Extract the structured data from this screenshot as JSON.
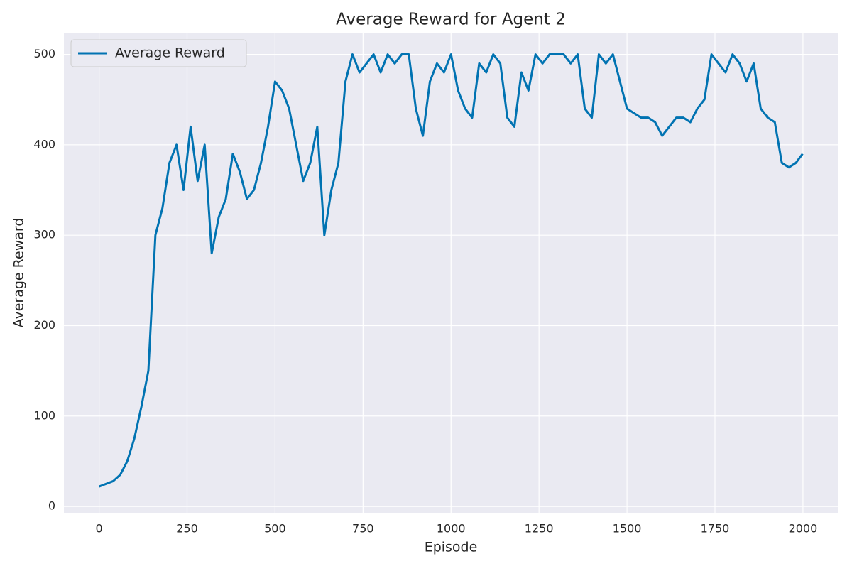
{
  "chart_data": {
    "type": "line",
    "title": "Average Reward for Agent 2",
    "x_label": "Episode",
    "y_label": "Average Reward",
    "x": [
      0,
      20,
      40,
      60,
      80,
      100,
      120,
      140,
      160,
      180,
      200,
      220,
      240,
      260,
      280,
      300,
      320,
      340,
      360,
      380,
      400,
      420,
      440,
      460,
      480,
      500,
      520,
      540,
      560,
      580,
      600,
      620,
      640,
      660,
      680,
      700,
      720,
      740,
      760,
      780,
      800,
      820,
      840,
      860,
      880,
      900,
      920,
      940,
      960,
      980,
      1000,
      1020,
      1040,
      1060,
      1080,
      1100,
      1120,
      1140,
      1160,
      1180,
      1200,
      1220,
      1240,
      1260,
      1280,
      1300,
      1320,
      1340,
      1360,
      1380,
      1400,
      1420,
      1440,
      1460,
      1480,
      1500,
      1520,
      1540,
      1560,
      1580,
      1600,
      1620,
      1640,
      1660,
      1680,
      1700,
      1720,
      1740,
      1760,
      1780,
      1800,
      1820,
      1840,
      1860,
      1880,
      1900,
      1920,
      1940,
      1960,
      1980,
      1999
    ],
    "series": [
      {
        "name": "Average Reward",
        "color": "#0173b2",
        "values": [
          22,
          25,
          28,
          35,
          50,
          75,
          110,
          150,
          300,
          330,
          380,
          400,
          350,
          420,
          360,
          400,
          280,
          320,
          340,
          390,
          370,
          340,
          350,
          380,
          420,
          470,
          460,
          440,
          400,
          360,
          380,
          420,
          300,
          350,
          380,
          470,
          500,
          480,
          490,
          500,
          480,
          500,
          490,
          500,
          500,
          440,
          410,
          470,
          490,
          480,
          500,
          460,
          440,
          430,
          490,
          480,
          500,
          490,
          430,
          420,
          480,
          460,
          500,
          490,
          500,
          500,
          500,
          490,
          500,
          440,
          430,
          500,
          490,
          500,
          470,
          440,
          435,
          430,
          430,
          425,
          410,
          420,
          430,
          430,
          425,
          440,
          450,
          500,
          490,
          480,
          500,
          490,
          470,
          490,
          440,
          430,
          425,
          380,
          375,
          380,
          390
        ]
      }
    ],
    "xlim": [
      -100,
      2099
    ],
    "ylim": [
      -7,
      524
    ],
    "xticks": [
      0,
      250,
      500,
      750,
      1000,
      1250,
      1500,
      1750,
      2000
    ],
    "yticks": [
      0,
      100,
      200,
      300,
      400,
      500
    ],
    "grid": true,
    "legend": "upper left"
  }
}
